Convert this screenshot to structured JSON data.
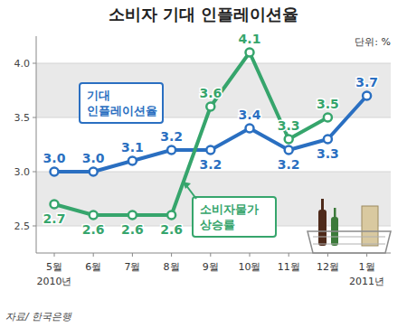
{
  "chart_data": {
    "type": "line",
    "title": "소비자 기대 인플레이션율",
    "subtitle": "단위: %",
    "source": "자료/ 한국은행",
    "categories": [
      "5월\n2010년",
      "6월",
      "7월",
      "8월",
      "9월",
      "10월",
      "11월",
      "12월",
      "1월\n2011년"
    ],
    "series": [
      {
        "name": "기대 인플레이션율",
        "color": "#2a6fc1",
        "marker": "circle",
        "line_style": "solid",
        "values": [
          3,
          3,
          3.1,
          3.2,
          3.2,
          3.4,
          3.2,
          3.3,
          3.7
        ],
        "value_labels": [
          "3.0",
          "3.0",
          "3.1",
          "3.2",
          "3.2",
          "3.4",
          "3.2",
          "3.3",
          "3.7"
        ]
      },
      {
        "name": "소비자물가 상승률",
        "color": "#36a56c",
        "marker": "circle",
        "line_style": "solid",
        "values": [
          2.7,
          2.6,
          2.6,
          2.6,
          3.6,
          4.1,
          3.3,
          3.5,
          null
        ],
        "value_labels": [
          "2.7",
          "2.6",
          "2.6",
          "2.6",
          "3.6",
          "4.1",
          "3.3",
          "3.5",
          null
        ]
      }
    ],
    "ylim": [
      2.25,
      4.25
    ],
    "yticks": [
      2.5,
      {
        "value": 3,
        "label": "3.0"
      },
      3.5,
      {
        "value": 4,
        "label": "4.0"
      }
    ],
    "grid": true,
    "data_labels": true
  }
}
